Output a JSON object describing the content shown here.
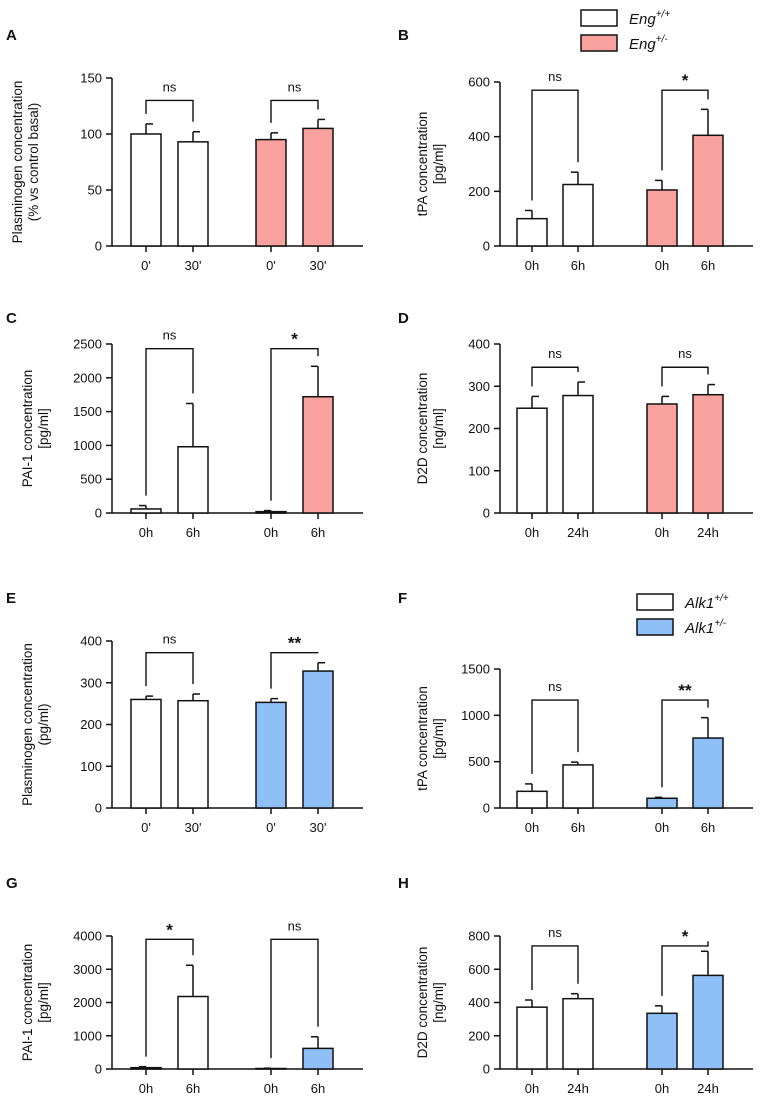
{
  "colors": {
    "wt": "#ffffff",
    "eng": "#f9a19f",
    "alk": "#8fbff7",
    "stroke": "#111111"
  },
  "legends": [
    {
      "name": "eng",
      "items": [
        {
          "base": "Eng",
          "sup": "+/+",
          "color": "#ffffff"
        },
        {
          "base": "Eng",
          "sup": "+/-",
          "color": "#f9a19f"
        }
      ]
    },
    {
      "name": "alk",
      "items": [
        {
          "base": "Alk1",
          "sup": "+/+",
          "color": "#ffffff"
        },
        {
          "base": "Alk1",
          "sup": "+/-",
          "color": "#8fbff7"
        }
      ]
    }
  ],
  "chart_data": [
    {
      "letter": "A",
      "type": "bar",
      "ylabel": [
        "Plasminogen concentration",
        "(% vs control basal)"
      ],
      "ylim": [
        0,
        150
      ],
      "yticks": [
        0,
        50,
        100,
        150
      ],
      "categories": [
        "0'",
        "30'",
        "0'",
        "30'"
      ],
      "values": [
        100,
        93,
        95,
        105
      ],
      "errors": [
        9,
        9,
        6,
        8
      ],
      "colors": [
        "#ffffff",
        "#ffffff",
        "#f9a19f",
        "#f9a19f"
      ],
      "sig": [
        {
          "label": "ns",
          "peak": 130
        },
        {
          "label": "ns",
          "peak": 130
        }
      ]
    },
    {
      "letter": "B",
      "type": "bar",
      "ylabel": [
        "tPA concentration",
        "[pg/ml]"
      ],
      "ylim": [
        0,
        600
      ],
      "yticks": [
        0,
        200,
        400,
        600
      ],
      "categories": [
        "0h",
        "6h",
        "0h",
        "6h"
      ],
      "values": [
        100,
        225,
        205,
        405
      ],
      "errors": [
        30,
        45,
        35,
        95
      ],
      "colors": [
        "#ffffff",
        "#ffffff",
        "#f9a19f",
        "#f9a19f"
      ],
      "sig": [
        {
          "label": "ns",
          "peak": 570
        },
        {
          "label": "*",
          "peak": 570
        }
      ]
    },
    {
      "letter": "C",
      "type": "bar",
      "ylabel": [
        "PAI-1 concentration",
        "[pg/ml]"
      ],
      "ylim": [
        0,
        2500
      ],
      "yticks": [
        0,
        500,
        1000,
        1500,
        2000,
        2500
      ],
      "categories": [
        "0h",
        "6h",
        "0h",
        "6h"
      ],
      "values": [
        60,
        980,
        20,
        1720
      ],
      "errors": [
        50,
        640,
        15,
        450
      ],
      "colors": [
        "#ffffff",
        "#ffffff",
        "#f9a19f",
        "#f9a19f"
      ],
      "sig": [
        {
          "label": "ns",
          "peak": 2430
        },
        {
          "label": "*",
          "peak": 2430
        }
      ]
    },
    {
      "letter": "D",
      "type": "bar",
      "ylabel": [
        "D2D concentration",
        "[ng/ml]"
      ],
      "ylim": [
        0,
        400
      ],
      "yticks": [
        0,
        100,
        200,
        300,
        400
      ],
      "categories": [
        "0h",
        "24h",
        "0h",
        "24h"
      ],
      "values": [
        248,
        278,
        258,
        280
      ],
      "errors": [
        28,
        32,
        18,
        24
      ],
      "colors": [
        "#ffffff",
        "#ffffff",
        "#f9a19f",
        "#f9a19f"
      ],
      "sig": [
        {
          "label": "ns",
          "peak": 345
        },
        {
          "label": "ns",
          "peak": 345
        }
      ]
    },
    {
      "letter": "E",
      "type": "bar",
      "ylabel": [
        "Plasminogen concentration",
        "(pg/ml)"
      ],
      "ylim": [
        0,
        400
      ],
      "yticks": [
        0,
        100,
        200,
        300,
        400
      ],
      "categories": [
        "0'",
        "30'",
        "0'",
        "30'"
      ],
      "values": [
        260,
        257,
        253,
        328
      ],
      "errors": [
        8,
        16,
        9,
        20
      ],
      "colors": [
        "#ffffff",
        "#ffffff",
        "#8fbff7",
        "#8fbff7"
      ],
      "sig": [
        {
          "label": "ns",
          "peak": 372
        },
        {
          "label": "**",
          "peak": 372
        }
      ]
    },
    {
      "letter": "F",
      "type": "bar",
      "ylabel": [
        "tPA concentration",
        "[pg/ml]"
      ],
      "ylim": [
        0,
        1500
      ],
      "yticks": [
        0,
        500,
        1000,
        1500
      ],
      "categories": [
        "0h",
        "6h",
        "0h",
        "6h"
      ],
      "values": [
        180,
        465,
        105,
        755
      ],
      "errors": [
        80,
        30,
        10,
        220
      ],
      "colors": [
        "#ffffff",
        "#ffffff",
        "#8fbff7",
        "#8fbff7"
      ],
      "sig": [
        {
          "label": "ns",
          "peak": 1165
        },
        {
          "label": "**",
          "peak": 1165
        }
      ]
    },
    {
      "letter": "G",
      "type": "bar",
      "ylabel": [
        "PAI-1 concentration",
        "[pg/ml]"
      ],
      "ylim": [
        0,
        4000
      ],
      "yticks": [
        0,
        1000,
        2000,
        3000,
        4000
      ],
      "categories": [
        "0h",
        "6h",
        "0h",
        "6h"
      ],
      "values": [
        40,
        2180,
        15,
        620
      ],
      "errors": [
        30,
        940,
        10,
        350
      ],
      "colors": [
        "#ffffff",
        "#ffffff",
        "#8fbff7",
        "#8fbff7"
      ],
      "sig": [
        {
          "label": "*",
          "peak": 3900
        },
        {
          "label": "ns",
          "peak": 3900
        }
      ]
    },
    {
      "letter": "H",
      "type": "bar",
      "ylabel": [
        "D2D concentration",
        "[ng/ml]"
      ],
      "ylim": [
        0,
        800
      ],
      "yticks": [
        0,
        200,
        400,
        600,
        800
      ],
      "categories": [
        "0h",
        "24h",
        "0h",
        "24h"
      ],
      "values": [
        372,
        423,
        335,
        563
      ],
      "errors": [
        43,
        30,
        45,
        145
      ],
      "colors": [
        "#ffffff",
        "#ffffff",
        "#8fbff7",
        "#8fbff7"
      ],
      "sig": [
        {
          "label": "ns",
          "peak": 740
        },
        {
          "label": "*",
          "peak": 740
        }
      ]
    }
  ]
}
